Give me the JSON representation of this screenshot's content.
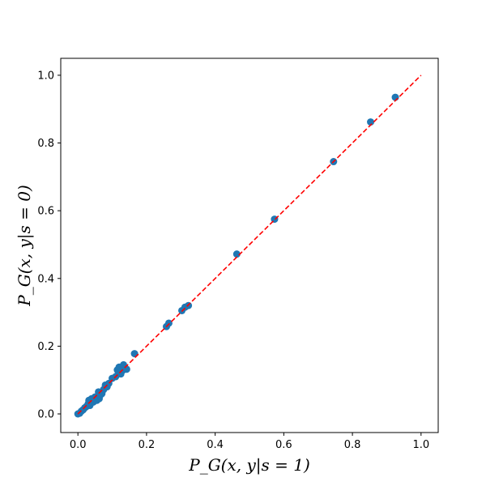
{
  "chart_data": {
    "type": "scatter",
    "xlabel": "P_G(x, y|s = 1)",
    "ylabel": "P_G(x, y|s = 0)",
    "xlim": [
      -0.05,
      1.05
    ],
    "ylim": [
      -0.055,
      1.05
    ],
    "x_ticks": [
      "0.0",
      "0.2",
      "0.4",
      "0.6",
      "0.8",
      "1.0"
    ],
    "y_ticks": [
      "0.0",
      "0.2",
      "0.4",
      "0.6",
      "0.8",
      "1.0"
    ],
    "grid": false,
    "legend": "none",
    "colors": {
      "points": "#1f77b4",
      "reference_line": "#ff0000"
    },
    "reference_line": {
      "style": "dashed",
      "from": [
        0,
        0
      ],
      "to": [
        1,
        1
      ]
    },
    "points": [
      {
        "x": 0.0,
        "y": 0.0
      },
      {
        "x": 0.005,
        "y": 0.002
      },
      {
        "x": 0.01,
        "y": 0.008
      },
      {
        "x": 0.015,
        "y": 0.012
      },
      {
        "x": 0.02,
        "y": 0.018
      },
      {
        "x": 0.025,
        "y": 0.022
      },
      {
        "x": 0.03,
        "y": 0.03
      },
      {
        "x": 0.032,
        "y": 0.04
      },
      {
        "x": 0.035,
        "y": 0.025
      },
      {
        "x": 0.04,
        "y": 0.045
      },
      {
        "x": 0.045,
        "y": 0.035
      },
      {
        "x": 0.05,
        "y": 0.05
      },
      {
        "x": 0.055,
        "y": 0.04
      },
      {
        "x": 0.06,
        "y": 0.065
      },
      {
        "x": 0.062,
        "y": 0.045
      },
      {
        "x": 0.065,
        "y": 0.055
      },
      {
        "x": 0.07,
        "y": 0.06
      },
      {
        "x": 0.075,
        "y": 0.072
      },
      {
        "x": 0.08,
        "y": 0.085
      },
      {
        "x": 0.085,
        "y": 0.08
      },
      {
        "x": 0.09,
        "y": 0.09
      },
      {
        "x": 0.1,
        "y": 0.105
      },
      {
        "x": 0.11,
        "y": 0.11
      },
      {
        "x": 0.115,
        "y": 0.13
      },
      {
        "x": 0.118,
        "y": 0.12
      },
      {
        "x": 0.12,
        "y": 0.138
      },
      {
        "x": 0.125,
        "y": 0.118
      },
      {
        "x": 0.13,
        "y": 0.128
      },
      {
        "x": 0.133,
        "y": 0.145
      },
      {
        "x": 0.138,
        "y": 0.135
      },
      {
        "x": 0.142,
        "y": 0.132
      },
      {
        "x": 0.165,
        "y": 0.178
      },
      {
        "x": 0.258,
        "y": 0.258
      },
      {
        "x": 0.265,
        "y": 0.268
      },
      {
        "x": 0.303,
        "y": 0.305
      },
      {
        "x": 0.312,
        "y": 0.315
      },
      {
        "x": 0.322,
        "y": 0.32
      },
      {
        "x": 0.463,
        "y": 0.472
      },
      {
        "x": 0.573,
        "y": 0.575
      },
      {
        "x": 0.745,
        "y": 0.745
      },
      {
        "x": 0.853,
        "y": 0.862
      },
      {
        "x": 0.925,
        "y": 0.935
      }
    ]
  }
}
